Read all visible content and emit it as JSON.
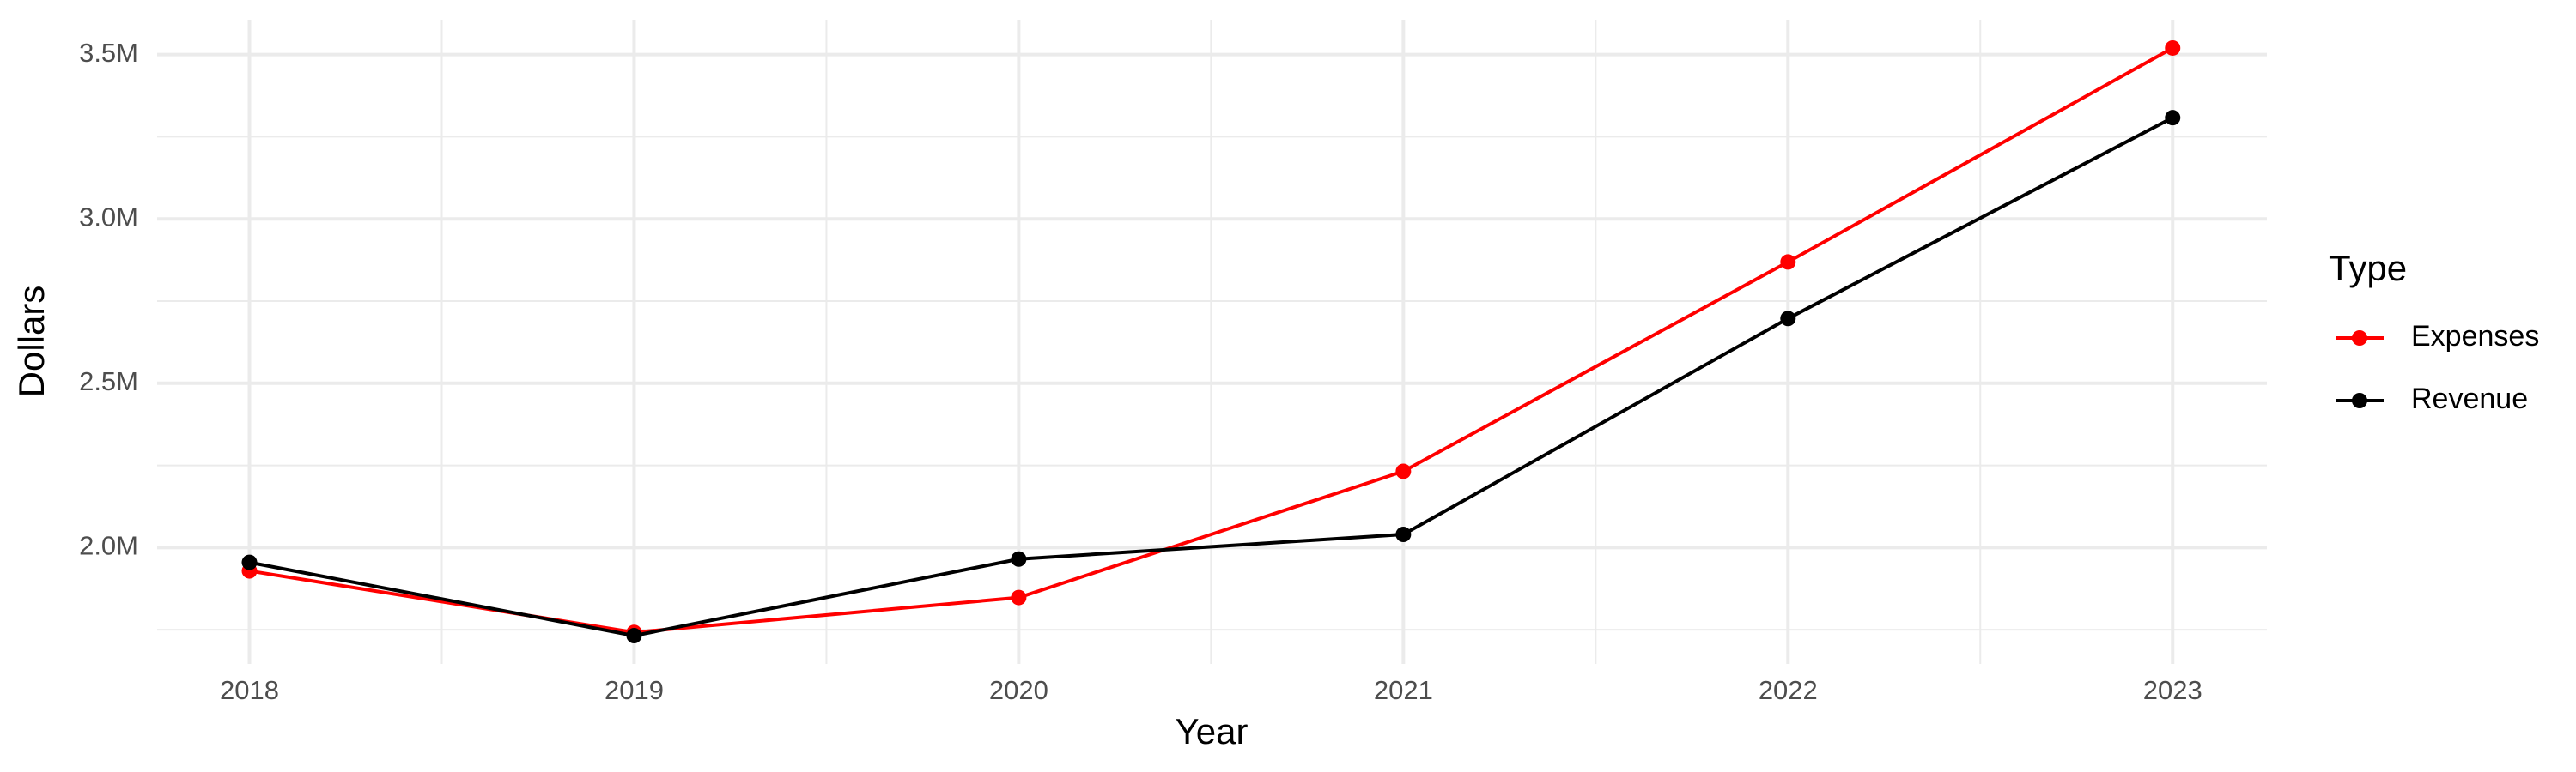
{
  "chart_data": {
    "type": "line",
    "x_label": "Year",
    "y_label": "Dollars",
    "legend_title": "Type",
    "x": [
      2018,
      2019,
      2020,
      2021,
      2022,
      2023
    ],
    "series": [
      {
        "name": "Expenses",
        "color": "#ff0000",
        "values": [
          1929000,
          1742000,
          1848000,
          2232000,
          2869000,
          3520000
        ]
      },
      {
        "name": "Revenue",
        "color": "#000000",
        "values": [
          1955000,
          1732000,
          1965000,
          2040000,
          2697000,
          3308000
        ]
      }
    ],
    "xlim": [
      2017.76,
      2023.245
    ],
    "xticks": [
      2018,
      2019,
      2020,
      2021,
      2022,
      2023
    ],
    "ylim": [
      1646000,
      3606000
    ],
    "yticks": [
      {
        "value": 2000000,
        "label": "2.0M"
      },
      {
        "value": 2500000,
        "label": "2.5M"
      },
      {
        "value": 3000000,
        "label": "3.0M"
      },
      {
        "value": 3500000,
        "label": "3.5M"
      }
    ],
    "grid": true,
    "legend": "right"
  }
}
